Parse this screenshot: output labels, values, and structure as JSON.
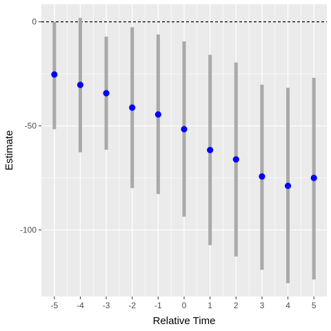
{
  "chart_data": {
    "type": "scatter",
    "title": "",
    "xlabel": "Relative Time",
    "ylabel": "Estimate",
    "x": [
      -5,
      -4,
      -3,
      -2,
      -1,
      0,
      1,
      2,
      3,
      4,
      5
    ],
    "estimate": [
      -25.3,
      -30.3,
      -34.3,
      -41.2,
      -44.5,
      -51.6,
      -61.6,
      -66.1,
      -74.3,
      -78.8,
      -75.0
    ],
    "ci_low": [
      -51.6,
      -62.7,
      -61.5,
      -79.9,
      -82.7,
      -93.6,
      -107.3,
      -112.8,
      -119.1,
      -125.6,
      -123.8
    ],
    "ci_high": [
      0.0,
      1.9,
      -7.1,
      -2.6,
      -6.1,
      -9.4,
      -15.8,
      -19.6,
      -30.2,
      -31.7,
      -26.9
    ],
    "xticks": [
      -5,
      -4,
      -3,
      -2,
      -1,
      0,
      1,
      2,
      3,
      4,
      5
    ],
    "yticks": [
      0,
      -50,
      -100
    ],
    "xlim": [
      -5.5,
      5.5
    ],
    "ylim": [
      -132,
      8.5
    ],
    "reference_line": {
      "y": 0,
      "style": "dashed"
    },
    "grid": true,
    "point_color": "#0000ff",
    "interval_color": "#a9a9a9",
    "panel_color": "#ebebeb"
  }
}
